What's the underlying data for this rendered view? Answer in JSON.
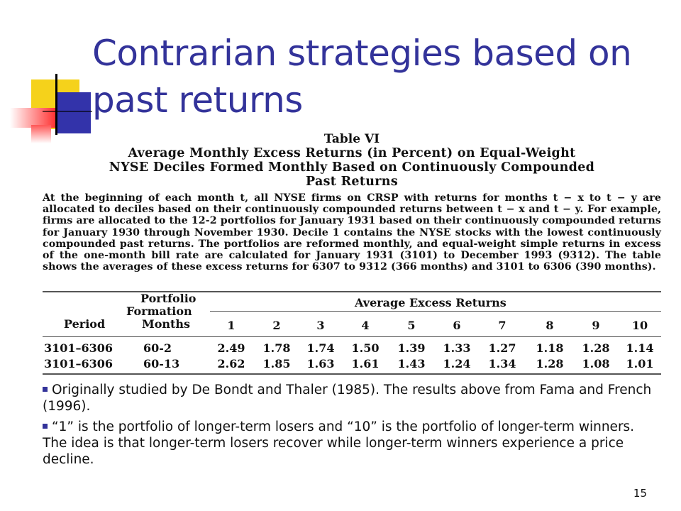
{
  "slide": {
    "title": "Contrarian strategies based on past returns",
    "page_number": "15"
  },
  "colors": {
    "title": "#33339a",
    "deco_yellow": "#f5d21b",
    "deco_blue": "#3333aa",
    "deco_red": "#ff3333"
  },
  "table": {
    "label": "Table VI",
    "heading_line1": "Average Monthly Excess Returns (in Percent) on Equal-Weight",
    "heading_line2": "NYSE Deciles Formed Monthly Based on Continuously Compounded",
    "heading_line3": "Past Returns",
    "description": "At the beginning of each month t, all NYSE firms on CRSP with returns for months t − x to t − y are allocated to deciles based on their continuously compounded returns between t − x and t − y. For example, firms are allocated to the 12-2 portfolios for January 1931 based on their continuously compounded returns for January 1930 through November 1930. Decile 1 contains the NYSE stocks with the lowest continuously compounded past returns. The portfolios are reformed monthly, and equal-weight simple returns in excess of the one-month bill rate are calculated for January 1931 (3101) to December 1993 (9312). The table shows the averages of these excess returns for 6307 to 9312 (366 months) and 3101 to 6306 (390 months).",
    "col_period": "Period",
    "col_formation_1": "Portfolio",
    "col_formation_2": "Formation",
    "col_formation_3": "Months",
    "col_group": "Average Excess Returns",
    "deciles": [
      "1",
      "2",
      "3",
      "4",
      "5",
      "6",
      "7",
      "8",
      "9",
      "10"
    ],
    "rows": [
      {
        "period": "3101–6306",
        "formation": "60-2",
        "values": [
          "2.49",
          "1.78",
          "1.74",
          "1.50",
          "1.39",
          "1.33",
          "1.27",
          "1.18",
          "1.28",
          "1.14"
        ]
      },
      {
        "period": "3101–6306",
        "formation": "60-13",
        "values": [
          "2.62",
          "1.85",
          "1.63",
          "1.61",
          "1.43",
          "1.24",
          "1.34",
          "1.28",
          "1.08",
          "1.01"
        ]
      }
    ]
  },
  "bullets": [
    "Originally studied by De Bondt and Thaler (1985). The results above   from Fama and French (1996).",
    "“1” is the portfolio of longer-term losers and “10” is the portfolio of longer-term winners. The idea is that longer-term losers recover while longer-term winners experience a price decline."
  ]
}
